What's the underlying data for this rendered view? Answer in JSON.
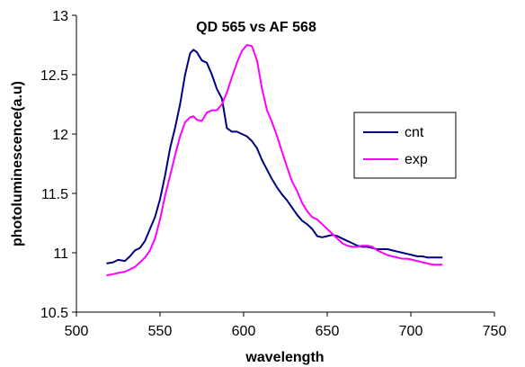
{
  "chart_data": {
    "type": "line",
    "title": "QD 565 vs AF 568",
    "xlabel": "wavelength",
    "ylabel": "photoluminescence(a.u)",
    "xlim": [
      500,
      750
    ],
    "ylim": [
      10.5,
      13
    ],
    "xticks": [
      "500",
      "550",
      "600",
      "650",
      "700",
      "750"
    ],
    "yticks": [
      "10.5",
      "11",
      "11.5",
      "12",
      "12.5",
      "13"
    ],
    "grid": false,
    "legend_position": "right",
    "series": [
      {
        "name": "cnt",
        "color": "#000080",
        "x": [
          518,
          522,
          525,
          529,
          532,
          535,
          538,
          541,
          544,
          547,
          550,
          553,
          556,
          559,
          562,
          565,
          568,
          570,
          572,
          575,
          578,
          581,
          584,
          587,
          590,
          593,
          596,
          599,
          602,
          605,
          608,
          611,
          614,
          617,
          620,
          623,
          626,
          629,
          632,
          635,
          638,
          641,
          644,
          647,
          650,
          653,
          656,
          659,
          662,
          665,
          668,
          671,
          674,
          677,
          680,
          683,
          686,
          689,
          692,
          695,
          698,
          701,
          704,
          707,
          710,
          713,
          716,
          719
        ],
        "y": [
          10.91,
          10.92,
          10.94,
          10.93,
          10.97,
          11.02,
          11.04,
          11.1,
          11.2,
          11.3,
          11.45,
          11.65,
          11.88,
          12.05,
          12.25,
          12.5,
          12.68,
          12.71,
          12.69,
          12.62,
          12.6,
          12.5,
          12.38,
          12.3,
          12.05,
          12.02,
          12.02,
          12.0,
          11.98,
          11.94,
          11.88,
          11.78,
          11.7,
          11.62,
          11.55,
          11.49,
          11.44,
          11.38,
          11.32,
          11.27,
          11.24,
          11.2,
          11.14,
          11.13,
          11.14,
          11.15,
          11.14,
          11.12,
          11.1,
          11.08,
          11.06,
          11.05,
          11.05,
          11.04,
          11.03,
          11.03,
          11.03,
          11.02,
          11.01,
          11.0,
          10.99,
          10.98,
          10.97,
          10.97,
          10.96,
          10.96,
          10.96,
          10.96
        ]
      },
      {
        "name": "exp",
        "color": "#ff00ff",
        "x": [
          518,
          522,
          525,
          529,
          532,
          535,
          538,
          541,
          544,
          547,
          550,
          553,
          556,
          559,
          562,
          565,
          568,
          570,
          572,
          575,
          578,
          581,
          584,
          587,
          590,
          593,
          596,
          599,
          602,
          605,
          608,
          611,
          614,
          617,
          620,
          623,
          626,
          629,
          632,
          635,
          638,
          641,
          644,
          647,
          650,
          653,
          656,
          659,
          662,
          665,
          668,
          671,
          674,
          677,
          680,
          683,
          686,
          689,
          692,
          695,
          698,
          701,
          704,
          707,
          710,
          713,
          716,
          719
        ],
        "y": [
          10.81,
          10.82,
          10.83,
          10.84,
          10.86,
          10.88,
          10.92,
          10.96,
          11.02,
          11.12,
          11.28,
          11.48,
          11.65,
          11.82,
          11.98,
          12.1,
          12.14,
          12.15,
          12.12,
          12.11,
          12.18,
          12.2,
          12.2,
          12.25,
          12.35,
          12.48,
          12.6,
          12.7,
          12.75,
          12.74,
          12.62,
          12.38,
          12.2,
          12.1,
          11.98,
          11.85,
          11.72,
          11.6,
          11.52,
          11.42,
          11.35,
          11.3,
          11.28,
          11.24,
          11.2,
          11.16,
          11.12,
          11.08,
          11.06,
          11.05,
          11.05,
          11.06,
          11.06,
          11.05,
          11.02,
          11.0,
          10.98,
          10.97,
          10.96,
          10.95,
          10.95,
          10.94,
          10.93,
          10.92,
          10.91,
          10.9,
          10.9,
          10.9
        ]
      }
    ]
  }
}
